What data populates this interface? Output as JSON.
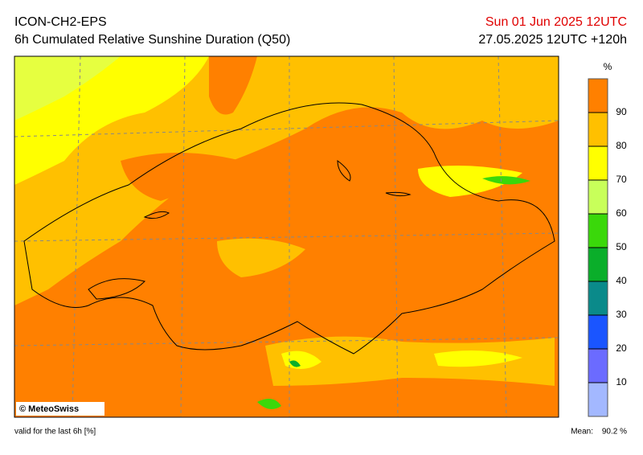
{
  "header": {
    "model": "ICON-CH2-EPS",
    "title": "6h Cumulated Relative Sunshine Duration (Q50)",
    "valid_date": "Sun 01 Jun 2025 12UTC",
    "run": "27.05.2025 12UTC +120h"
  },
  "colorbar": {
    "unit": "%",
    "ticks": [
      10,
      20,
      30,
      40,
      50,
      60,
      70,
      80,
      90
    ],
    "colors": [
      "#a3b8ff",
      "#6b6bff",
      "#1a55ff",
      "#0a8a8a",
      "#0aae2a",
      "#3ad80a",
      "#c8ff5a",
      "#ffff00",
      "#ffc000",
      "#ff8000"
    ]
  },
  "copyright": "© MeteoSwiss",
  "footer": {
    "valid": "valid for the last 6h [%]",
    "mean_label": "Mean:",
    "mean": "90.2 %"
  }
}
